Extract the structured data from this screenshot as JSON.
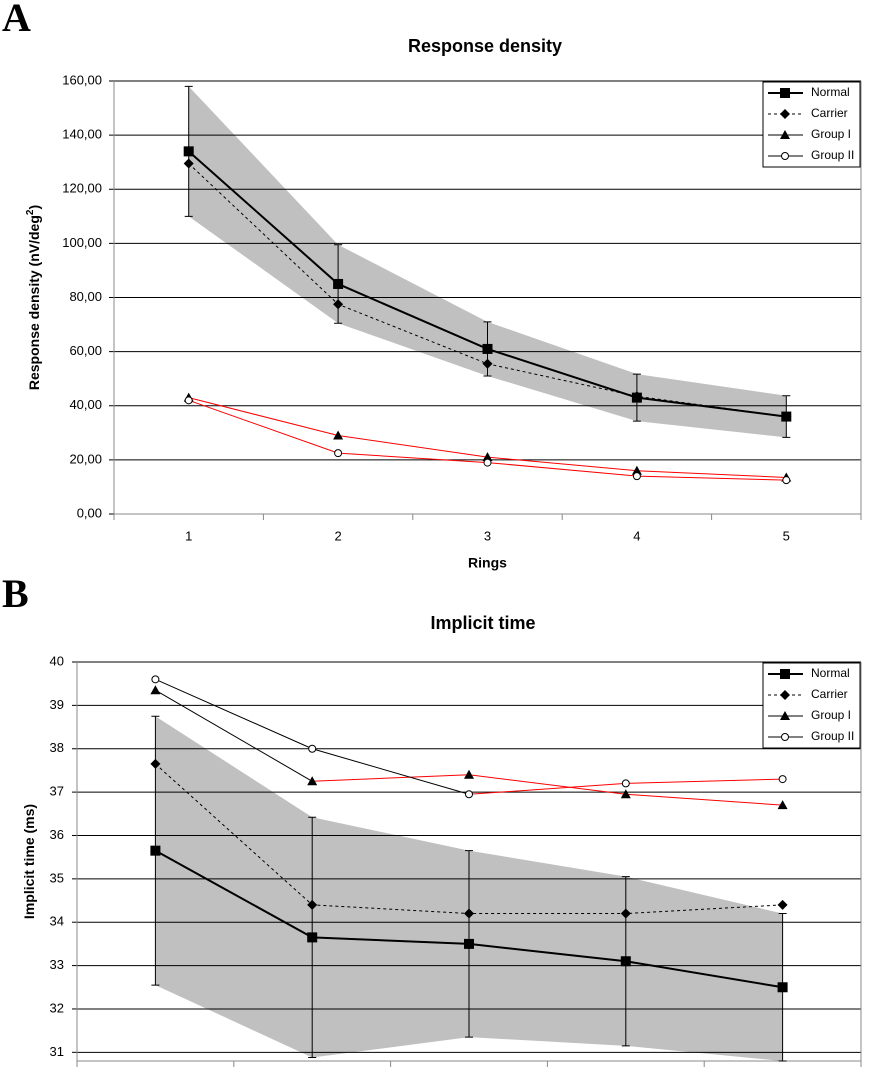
{
  "chart_data": [
    {
      "type": "line",
      "panel_label": "A",
      "title": "Response density",
      "x_label": "Rings",
      "y_label_parts": [
        "Response density (nV/deg",
        "2",
        ")"
      ],
      "categories": [
        "1",
        "2",
        "3",
        "4",
        "5"
      ],
      "ylim": [
        0,
        160
      ],
      "yticks": [
        {
          "value": 0,
          "label": "0,00"
        },
        {
          "value": 20,
          "label": "20,00"
        },
        {
          "value": 40,
          "label": "40,00"
        },
        {
          "value": 60,
          "label": "60,00"
        },
        {
          "value": 80,
          "label": "80,00"
        },
        {
          "value": 100,
          "label": "100,00"
        },
        {
          "value": 120,
          "label": "120,00"
        },
        {
          "value": 140,
          "label": "140,00"
        },
        {
          "value": 160,
          "label": "160,00"
        }
      ],
      "grid": true,
      "legend": "upper right",
      "band_color": "#c0c0c0",
      "series": [
        {
          "name": "Normal",
          "color": "#000000",
          "marker": "square",
          "dash": false,
          "width": 2,
          "values": [
            134,
            85,
            61,
            43,
            36
          ],
          "errors": [
            24,
            14.5,
            10,
            8.7,
            7.7
          ],
          "band": true
        },
        {
          "name": "Carrier",
          "color": "#000000",
          "marker": "diamond",
          "dash": true,
          "width": 1,
          "values": [
            129.5,
            77.5,
            55.5,
            43.5,
            36
          ]
        },
        {
          "name": "Group I",
          "color": "#000000",
          "marker": "triangle",
          "dash": false,
          "width": 1,
          "values": [
            43,
            29,
            21,
            16,
            13.5
          ],
          "segment_colors": [
            "#ff0000",
            "#ff0000",
            "#ff0000",
            "#ff0000"
          ]
        },
        {
          "name": "Group II",
          "color": "#000000",
          "marker": "circle",
          "dash": false,
          "width": 1,
          "values": [
            42,
            22.5,
            19,
            14,
            12.5
          ],
          "segment_colors": [
            "#ff0000",
            "#ff0000",
            "#ff0000",
            "#ff0000"
          ]
        }
      ]
    },
    {
      "type": "line",
      "panel_label": "B",
      "title": "Implicit time",
      "y_label_parts": [
        "Implicit time (ms)"
      ],
      "categories": [
        null,
        null,
        null,
        null,
        null
      ],
      "ylim": [
        30.8,
        40
      ],
      "yticks": [
        31,
        32,
        33,
        34,
        35,
        36,
        37,
        38,
        39,
        40
      ],
      "grid": true,
      "legend": "upper right",
      "band_color": "#c0c0c0",
      "series": [
        {
          "name": "Normal",
          "color": "#000000",
          "marker": "square",
          "dash": false,
          "width": 2,
          "values": [
            35.65,
            33.65,
            33.5,
            33.1,
            32.5
          ],
          "errors": [
            3.1,
            2.77,
            2.15,
            1.95,
            1.7
          ],
          "band": true
        },
        {
          "name": "Carrier",
          "color": "#000000",
          "marker": "diamond",
          "dash": true,
          "width": 1,
          "values": [
            37.65,
            34.4,
            34.2,
            34.2,
            34.4
          ]
        },
        {
          "name": "Group I",
          "color": "#000000",
          "marker": "triangle",
          "dash": false,
          "width": 1,
          "values": [
            39.35,
            37.25,
            37.4,
            36.95,
            36.7
          ],
          "segment_colors": [
            "#000000",
            "#ff0000",
            "#ff0000",
            "#ff0000"
          ]
        },
        {
          "name": "Group II",
          "color": "#000000",
          "marker": "circle",
          "dash": false,
          "width": 1,
          "values": [
            39.6,
            38.0,
            36.95,
            37.2,
            37.3
          ],
          "segment_colors": [
            "#000000",
            "#000000",
            "#ff0000",
            "#ff0000"
          ]
        }
      ]
    }
  ]
}
